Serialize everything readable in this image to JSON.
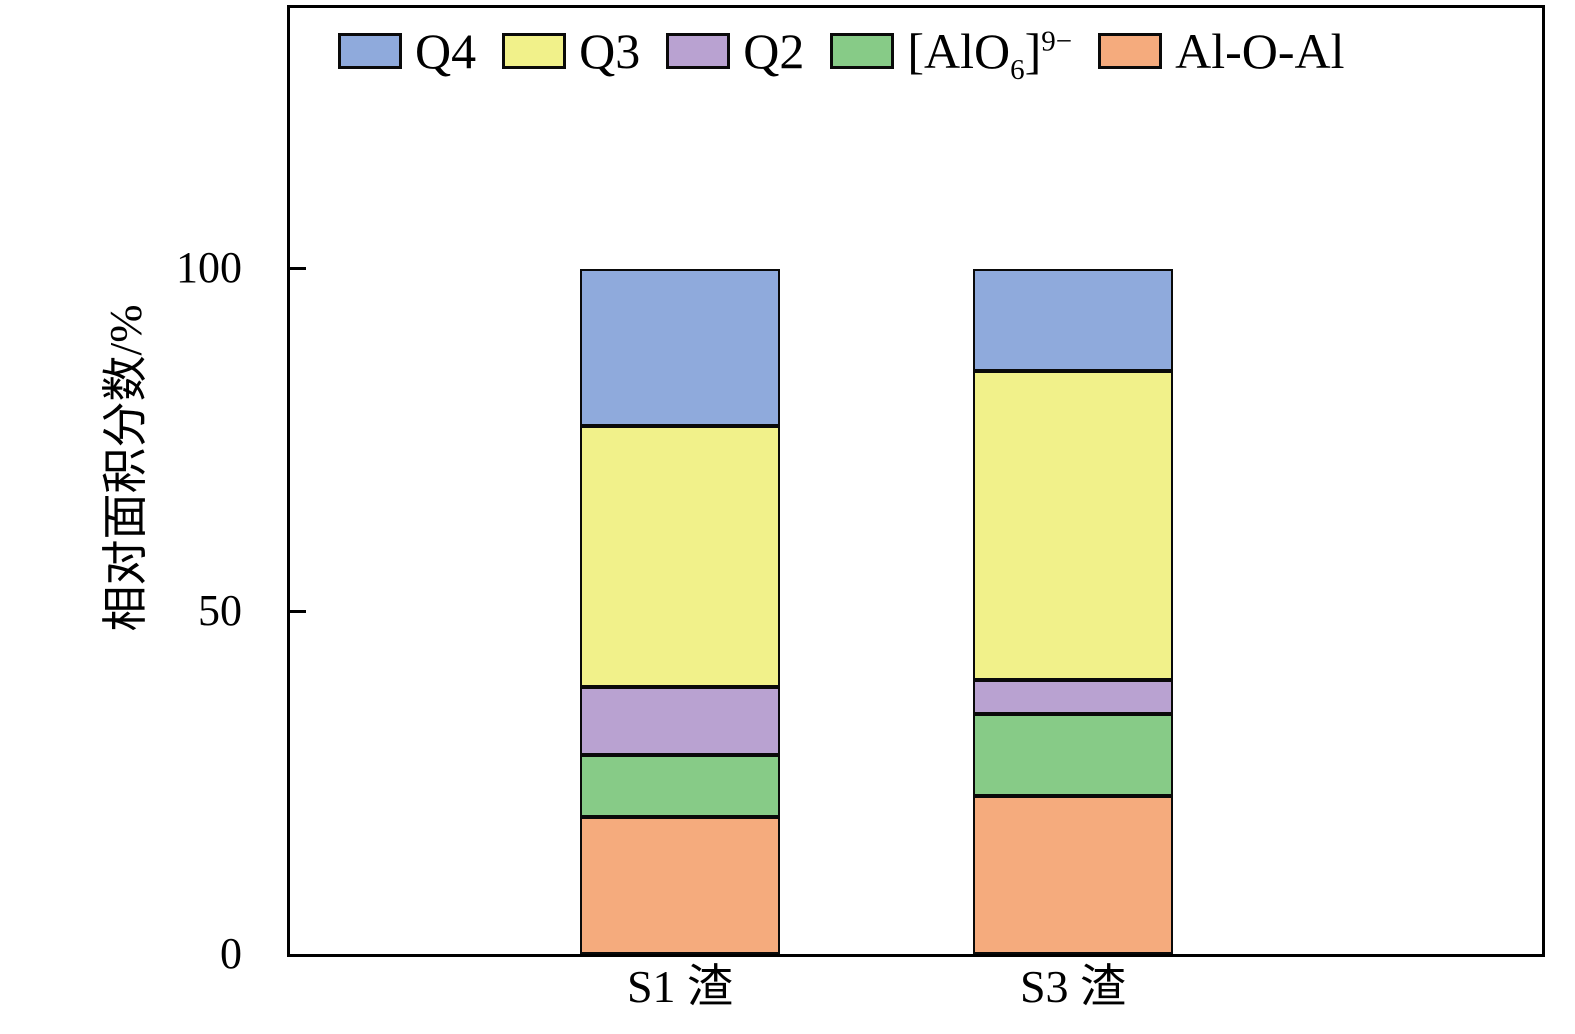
{
  "chart_data": {
    "type": "bar",
    "stacked": true,
    "title": "",
    "xlabel": "",
    "ylabel": "相对面积分数/%",
    "categories": [
      "S1 渣",
      "S3 渣"
    ],
    "yticks": [
      0,
      50,
      100
    ],
    "ylim": [
      0,
      138
    ],
    "grid": false,
    "legend_position": "top-left-inside",
    "series": [
      {
        "id": "q4",
        "name": "Q4",
        "color": "#8FAADC",
        "values": [
          23,
          15
        ],
        "label_parts": [
          {
            "t": "text",
            "v": "Q4"
          }
        ]
      },
      {
        "id": "q3",
        "name": "Q3",
        "color": "#F1F18A",
        "values": [
          38,
          45
        ],
        "label_parts": [
          {
            "t": "text",
            "v": "Q3"
          }
        ]
      },
      {
        "id": "q2",
        "name": "Q2",
        "color": "#B9A2D1",
        "values": [
          10,
          5
        ],
        "label_parts": [
          {
            "t": "text",
            "v": "Q2"
          }
        ]
      },
      {
        "id": "alo6",
        "name": "[AlO6]9-",
        "color": "#87CB87",
        "values": [
          9,
          12
        ],
        "label_parts": [
          {
            "t": "text",
            "v": "[AlO"
          },
          {
            "t": "sub",
            "v": "6"
          },
          {
            "t": "text",
            "v": "]"
          },
          {
            "t": "sup",
            "v": "9−"
          }
        ]
      },
      {
        "id": "al-o-al",
        "name": "Al-O-Al",
        "color": "#F5AB7D",
        "values": [
          20,
          23
        ],
        "label_parts": [
          {
            "t": "text",
            "v": "Al-O-Al"
          }
        ]
      }
    ]
  }
}
